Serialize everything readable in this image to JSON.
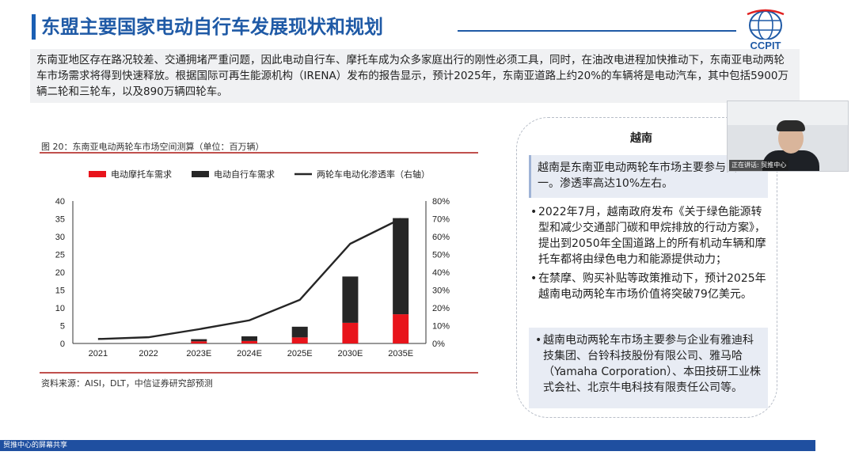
{
  "slide": {
    "title": "东盟主要国家电动自行车发展现状和规划",
    "logo_text": "CCPIT",
    "intro": "东南亚地区存在路况较差、交通拥堵严重问题，因此电动自行车、摩托车成为众多家庭出行的刚性必须工具，同时，在油改电进程加快推动下，东南亚电动两轮车市场需求将得到快速释放。根据国际可再生能源机构（IRENA）发布的报告显示，预计2025年，东南亚道路上约20%的车辆将是电动汽车，其中包括5900万辆二轮和三轮车，以及890万辆四轮车。"
  },
  "figure": {
    "caption": "图 20：东南亚电动两轮车市场空间测算（单位：百万辆）",
    "source": "资料来源：AISI，DLT，中信证券研究部预测"
  },
  "chart_data": {
    "type": "bar",
    "categories": [
      "2021",
      "2022",
      "2023E",
      "2024E",
      "2025E",
      "2030E",
      "2035E"
    ],
    "series": [
      {
        "name": "电动摩托车需求",
        "kind": "bar",
        "color": "#e8141b",
        "values": [
          0,
          0,
          0.6,
          0.7,
          1.7,
          5.8,
          8.2
        ]
      },
      {
        "name": "电动自行车需求",
        "kind": "bar",
        "color": "#262626",
        "values": [
          0,
          0,
          0.6,
          1.3,
          3.0,
          13.0,
          27.0
        ]
      },
      {
        "name": "两轮车电动化渗透率（右轴）",
        "kind": "line",
        "axis": "right",
        "color": "#262626",
        "values": [
          2.5,
          3.5,
          8,
          13,
          24.5,
          56,
          70
        ]
      }
    ],
    "ylim": [
      0,
      40
    ],
    "yticks": [
      "0",
      "5",
      "10",
      "15",
      "20",
      "25",
      "30",
      "35",
      "40"
    ],
    "y2lim": [
      0,
      80
    ],
    "y2ticks": [
      "0%",
      "10%",
      "20%",
      "30%",
      "40%",
      "50%",
      "60%",
      "70%",
      "80%"
    ],
    "stacked": true,
    "grid": false,
    "legend_position": "top"
  },
  "panel": {
    "title": "越南",
    "highlight": "越南是东南亚电动两轮车市场主要参与国之一。渗透率高达10%左右。",
    "bullets": [
      "2022年7月，越南政府发布《关于绿色能源转型和减少交通部门碳和甲烷排放的行动方案》，提出到2050年全国道路上的所有机动车辆和摩托车都将由绿色电力和能源提供动力；",
      "在禁摩、购买补贴等政策推动下，预计2025年越南电动两轮车市场价值将突破79亿美元。"
    ],
    "companies": "越南电动两轮车市场主要参与企业有雅迪科技集团、台铃科技股份有限公司、雅马哈（Yamaha Corporation）、本田技研工业株式会社、北京牛电科技有限责任公司等。",
    "bullet_char": "•"
  },
  "video": {
    "speaker_label": "正在讲话: 贸推中心"
  },
  "share": {
    "label": "贸推中心的屏幕共享"
  }
}
